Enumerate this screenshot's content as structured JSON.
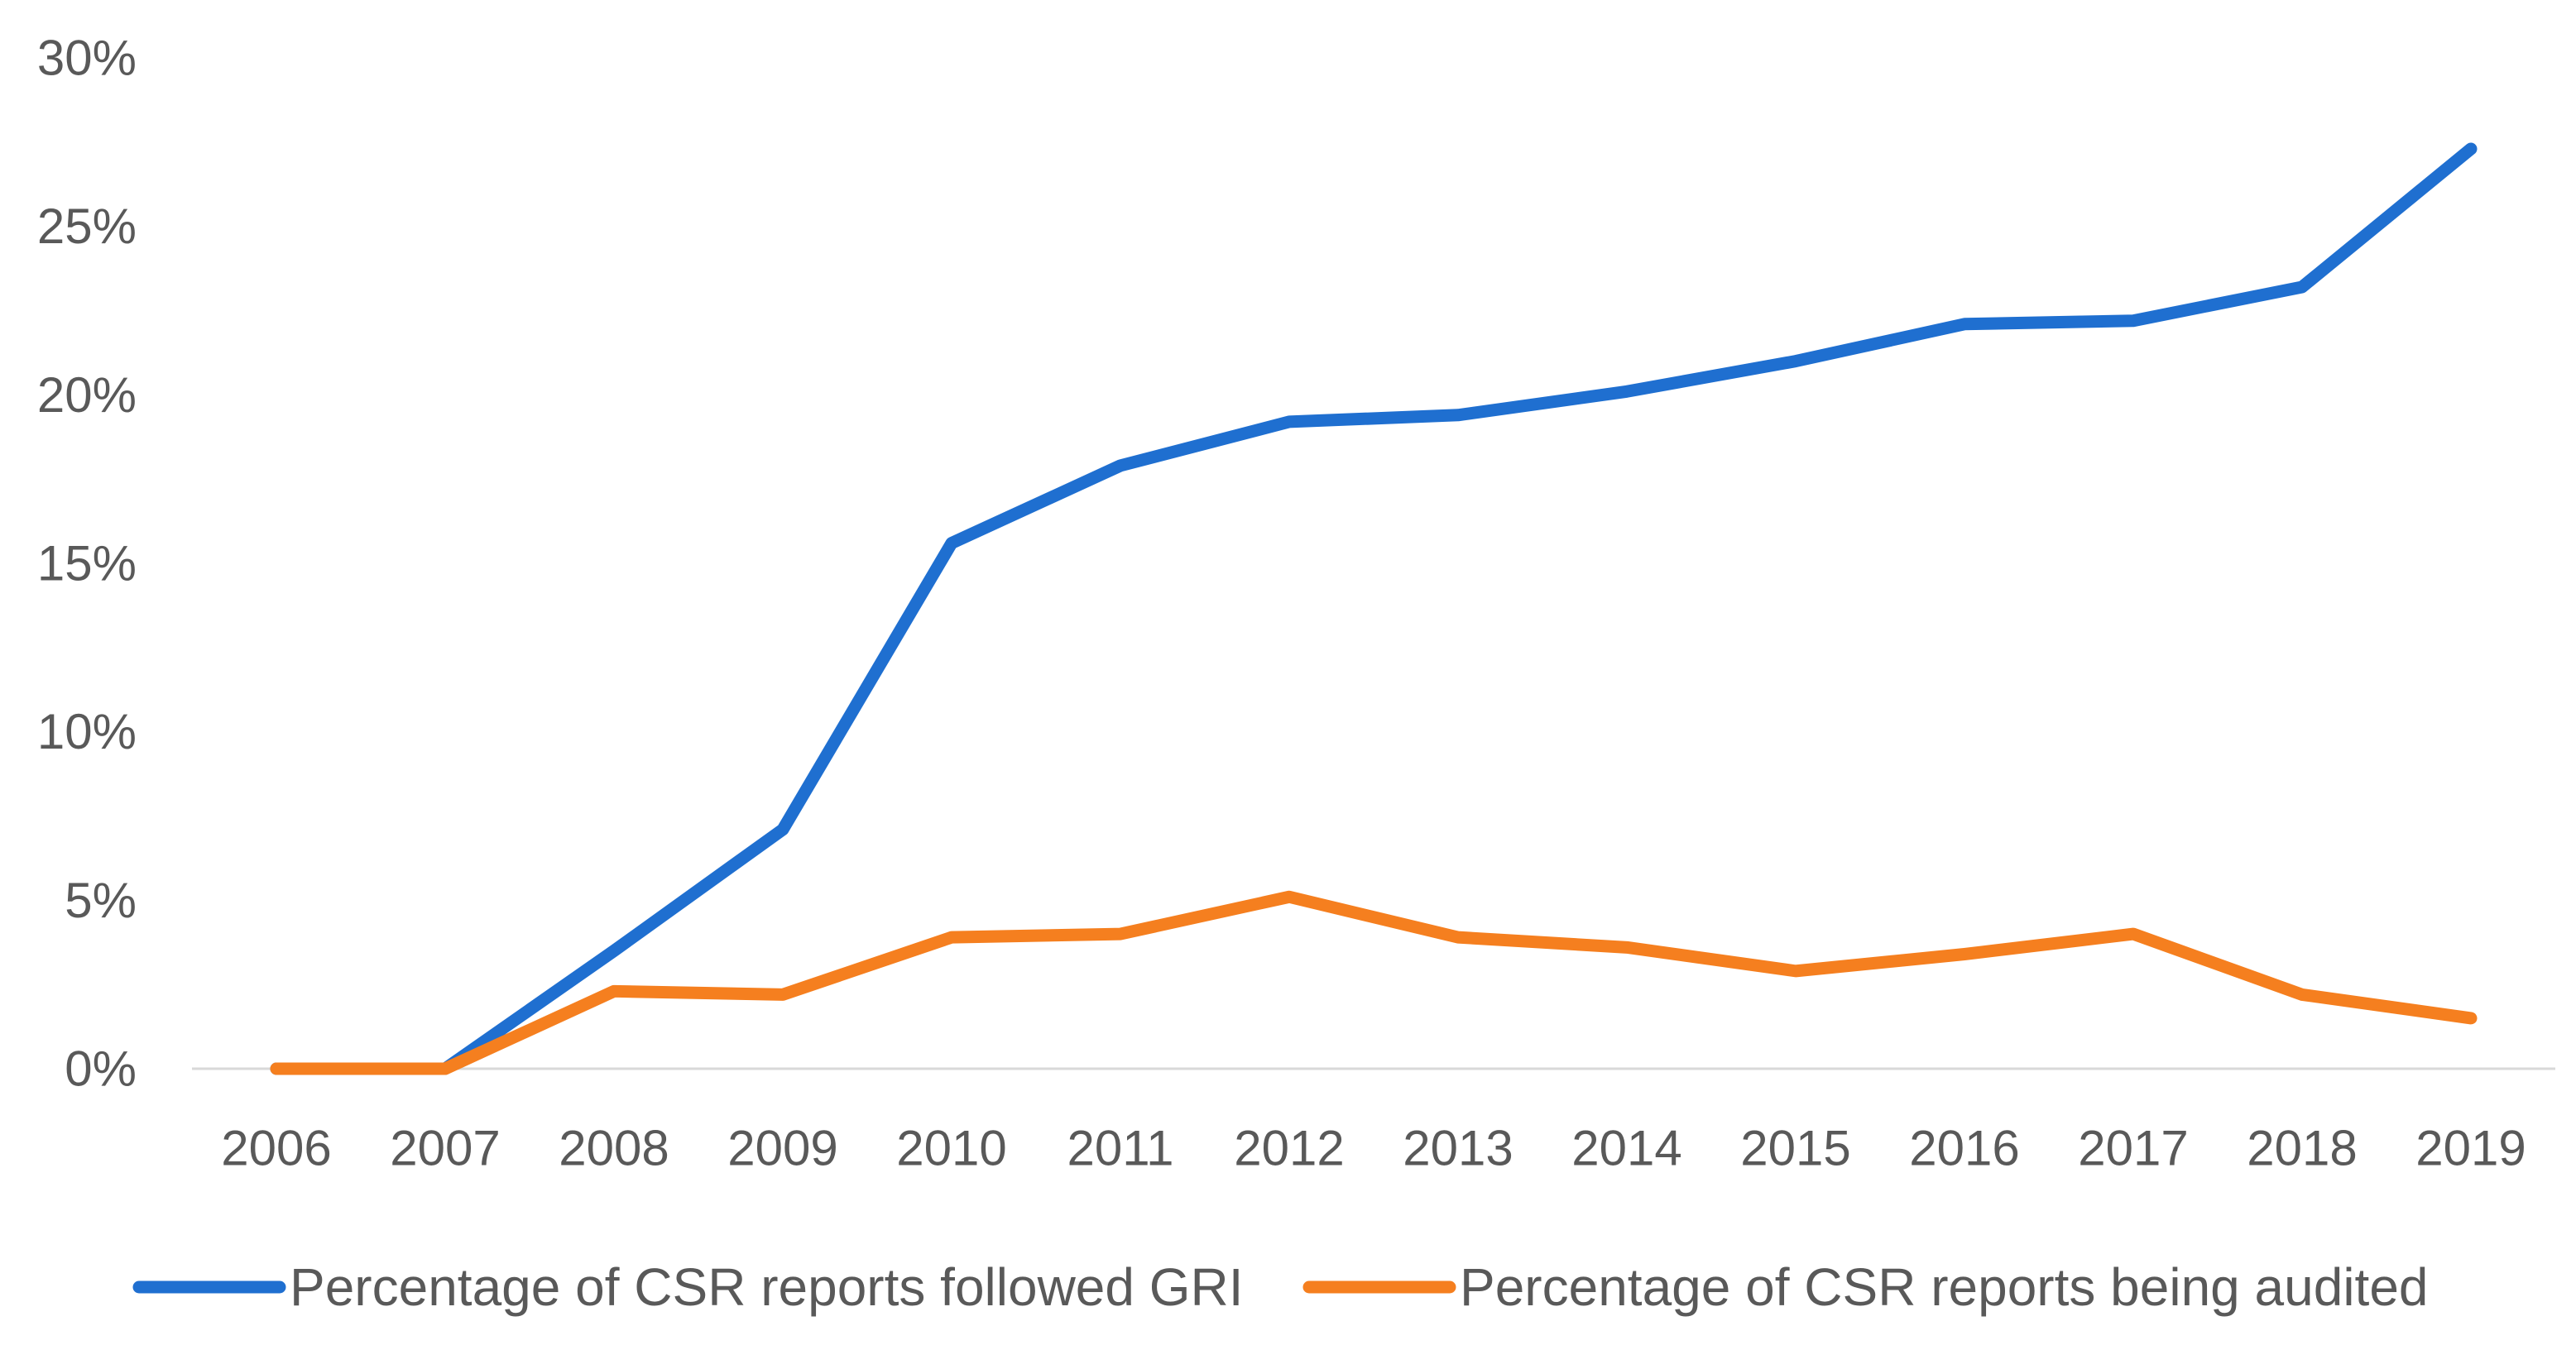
{
  "chart_data": {
    "type": "line",
    "title": "",
    "xlabel": "",
    "ylabel": "",
    "categories": [
      "2006",
      "2007",
      "2008",
      "2009",
      "2010",
      "2011",
      "2012",
      "2013",
      "2014",
      "2015",
      "2016",
      "2017",
      "2018",
      "2019"
    ],
    "y_ticks": [
      "0%",
      "5%",
      "10%",
      "15%",
      "20%",
      "25%",
      "30%"
    ],
    "ylim": [
      0,
      30
    ],
    "grid": false,
    "legend_position": "bottom",
    "series": [
      {
        "name": "Percentage of CSR reports followed GRI",
        "color": "#1F6FD0",
        "values": [
          0,
          0,
          3.5,
          7.1,
          15.6,
          17.9,
          19.2,
          19.4,
          20.1,
          21.0,
          22.1,
          22.2,
          23.2,
          27.3
        ]
      },
      {
        "name": "Percentage of CSR reports being audited",
        "color": "#F57F1F",
        "values": [
          0,
          0,
          2.3,
          2.2,
          3.9,
          4.0,
          5.1,
          3.9,
          3.6,
          2.9,
          3.4,
          4.0,
          2.2,
          1.5
        ]
      }
    ]
  }
}
